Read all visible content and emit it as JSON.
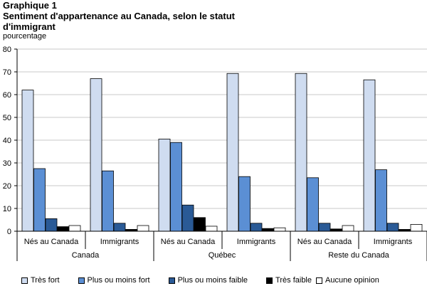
{
  "header": {
    "graphic_label": "Graphique 1",
    "title_line1": "Sentiment d'appartenance au Canada, selon le statut",
    "title_line2": "d'immigrant",
    "unit": "pourcentage"
  },
  "colors": {
    "series": [
      "#cfdcf0",
      "#5b8fd4",
      "#2a5a96",
      "#000000",
      "#ffffff"
    ],
    "border": "#000000",
    "grid": "#c8c8c8"
  },
  "chart_data": {
    "type": "bar",
    "title": "Sentiment d'appartenance au Canada, selon le statut d'immigrant",
    "ylabel": "pourcentage",
    "ylim": [
      0,
      80
    ],
    "yticks": [
      0,
      10,
      20,
      30,
      40,
      50,
      60,
      70,
      80
    ],
    "grid": true,
    "legend_position": "bottom",
    "categories": [
      "Nés au Canada",
      "Immigrants",
      "Nés au Canada",
      "Immigrants",
      "Nés au Canada",
      "Immigrants"
    ],
    "groups": [
      {
        "name": "Canada",
        "categories": [
          "Nés au Canada",
          "Immigrants"
        ]
      },
      {
        "name": "Québec",
        "categories": [
          "Nés au Canada",
          "Immigrants"
        ]
      },
      {
        "name": "Reste du Canada",
        "categories": [
          "Nés au Canada",
          "Immigrants"
        ]
      }
    ],
    "series": [
      {
        "name": "Très fort",
        "values": [
          62,
          67,
          40.5,
          69.3,
          69.3,
          66.5
        ]
      },
      {
        "name": "Plus ou moins fort",
        "values": [
          27.5,
          26.5,
          39,
          24,
          23.5,
          27
        ]
      },
      {
        "name": "Plus ou moins faible",
        "values": [
          5.5,
          3.5,
          11.5,
          3.5,
          3.5,
          3.5
        ]
      },
      {
        "name": "Très faible",
        "values": [
          2,
          0.8,
          6,
          1.2,
          1,
          0.8
        ]
      },
      {
        "name": "Aucune opinion",
        "values": [
          2.5,
          2.5,
          2.2,
          1.5,
          2.5,
          3
        ]
      }
    ]
  }
}
